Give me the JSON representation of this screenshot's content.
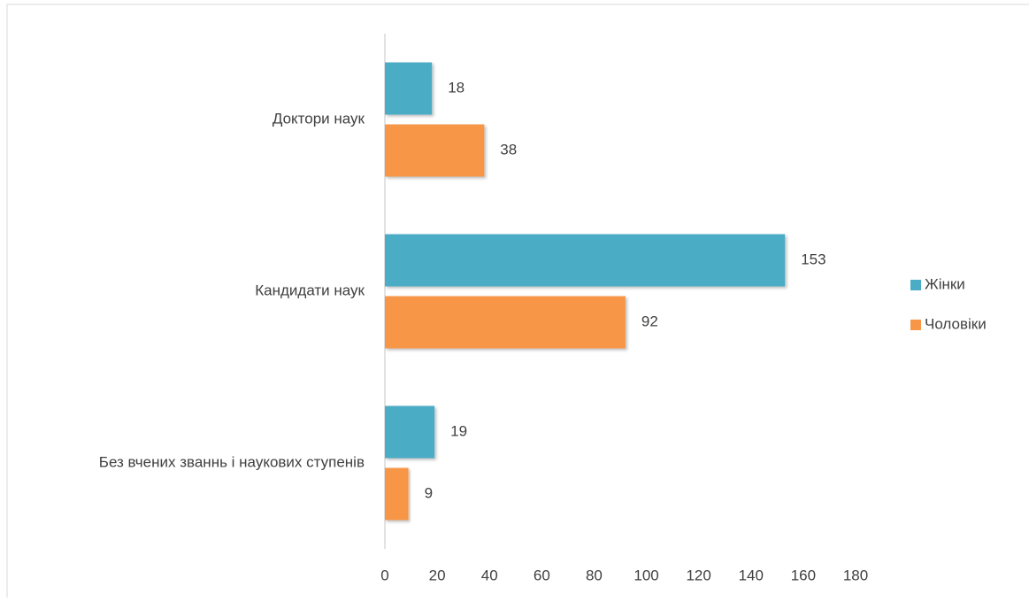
{
  "chart_data": {
    "type": "bar",
    "orientation": "horizontal",
    "categories": [
      "Доктори наук",
      "Кандидати наук",
      "Без вчених званнь і наукових ступенів"
    ],
    "series": [
      {
        "name": "Жінки",
        "color": "#4bacc6",
        "values": [
          18,
          153,
          19
        ]
      },
      {
        "name": "Чоловіки",
        "color": "#f79646",
        "values": [
          38,
          92,
          9
        ]
      }
    ],
    "xlim": [
      0,
      180
    ],
    "xticks": [
      0,
      20,
      40,
      60,
      80,
      100,
      120,
      140,
      160,
      180
    ],
    "legend": "right"
  }
}
